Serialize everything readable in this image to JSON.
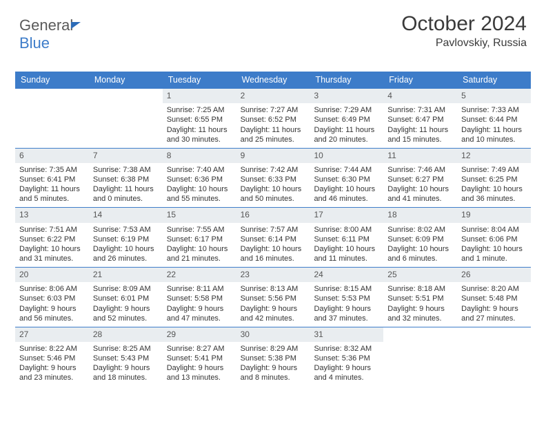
{
  "brand": {
    "part1": "General",
    "part2": "Blue"
  },
  "header": {
    "month_year": "October 2024",
    "location": "Pavlovskiy, Russia"
  },
  "colors": {
    "header_bg": "#3d7cc9",
    "daynum_bg": "#e9edf0",
    "rule": "#3d7cc9",
    "text": "#333333"
  },
  "dow": [
    "Sunday",
    "Monday",
    "Tuesday",
    "Wednesday",
    "Thursday",
    "Friday",
    "Saturday"
  ],
  "weeks": [
    [
      null,
      null,
      {
        "n": "1",
        "sr": "7:25 AM",
        "ss": "6:55 PM",
        "dl": "11 hours and 30 minutes."
      },
      {
        "n": "2",
        "sr": "7:27 AM",
        "ss": "6:52 PM",
        "dl": "11 hours and 25 minutes."
      },
      {
        "n": "3",
        "sr": "7:29 AM",
        "ss": "6:49 PM",
        "dl": "11 hours and 20 minutes."
      },
      {
        "n": "4",
        "sr": "7:31 AM",
        "ss": "6:47 PM",
        "dl": "11 hours and 15 minutes."
      },
      {
        "n": "5",
        "sr": "7:33 AM",
        "ss": "6:44 PM",
        "dl": "11 hours and 10 minutes."
      }
    ],
    [
      {
        "n": "6",
        "sr": "7:35 AM",
        "ss": "6:41 PM",
        "dl": "11 hours and 5 minutes."
      },
      {
        "n": "7",
        "sr": "7:38 AM",
        "ss": "6:38 PM",
        "dl": "11 hours and 0 minutes."
      },
      {
        "n": "8",
        "sr": "7:40 AM",
        "ss": "6:36 PM",
        "dl": "10 hours and 55 minutes."
      },
      {
        "n": "9",
        "sr": "7:42 AM",
        "ss": "6:33 PM",
        "dl": "10 hours and 50 minutes."
      },
      {
        "n": "10",
        "sr": "7:44 AM",
        "ss": "6:30 PM",
        "dl": "10 hours and 46 minutes."
      },
      {
        "n": "11",
        "sr": "7:46 AM",
        "ss": "6:27 PM",
        "dl": "10 hours and 41 minutes."
      },
      {
        "n": "12",
        "sr": "7:49 AM",
        "ss": "6:25 PM",
        "dl": "10 hours and 36 minutes."
      }
    ],
    [
      {
        "n": "13",
        "sr": "7:51 AM",
        "ss": "6:22 PM",
        "dl": "10 hours and 31 minutes."
      },
      {
        "n": "14",
        "sr": "7:53 AM",
        "ss": "6:19 PM",
        "dl": "10 hours and 26 minutes."
      },
      {
        "n": "15",
        "sr": "7:55 AM",
        "ss": "6:17 PM",
        "dl": "10 hours and 21 minutes."
      },
      {
        "n": "16",
        "sr": "7:57 AM",
        "ss": "6:14 PM",
        "dl": "10 hours and 16 minutes."
      },
      {
        "n": "17",
        "sr": "8:00 AM",
        "ss": "6:11 PM",
        "dl": "10 hours and 11 minutes."
      },
      {
        "n": "18",
        "sr": "8:02 AM",
        "ss": "6:09 PM",
        "dl": "10 hours and 6 minutes."
      },
      {
        "n": "19",
        "sr": "8:04 AM",
        "ss": "6:06 PM",
        "dl": "10 hours and 1 minute."
      }
    ],
    [
      {
        "n": "20",
        "sr": "8:06 AM",
        "ss": "6:03 PM",
        "dl": "9 hours and 56 minutes."
      },
      {
        "n": "21",
        "sr": "8:09 AM",
        "ss": "6:01 PM",
        "dl": "9 hours and 52 minutes."
      },
      {
        "n": "22",
        "sr": "8:11 AM",
        "ss": "5:58 PM",
        "dl": "9 hours and 47 minutes."
      },
      {
        "n": "23",
        "sr": "8:13 AM",
        "ss": "5:56 PM",
        "dl": "9 hours and 42 minutes."
      },
      {
        "n": "24",
        "sr": "8:15 AM",
        "ss": "5:53 PM",
        "dl": "9 hours and 37 minutes."
      },
      {
        "n": "25",
        "sr": "8:18 AM",
        "ss": "5:51 PM",
        "dl": "9 hours and 32 minutes."
      },
      {
        "n": "26",
        "sr": "8:20 AM",
        "ss": "5:48 PM",
        "dl": "9 hours and 27 minutes."
      }
    ],
    [
      {
        "n": "27",
        "sr": "8:22 AM",
        "ss": "5:46 PM",
        "dl": "9 hours and 23 minutes."
      },
      {
        "n": "28",
        "sr": "8:25 AM",
        "ss": "5:43 PM",
        "dl": "9 hours and 18 minutes."
      },
      {
        "n": "29",
        "sr": "8:27 AM",
        "ss": "5:41 PM",
        "dl": "9 hours and 13 minutes."
      },
      {
        "n": "30",
        "sr": "8:29 AM",
        "ss": "5:38 PM",
        "dl": "9 hours and 8 minutes."
      },
      {
        "n": "31",
        "sr": "8:32 AM",
        "ss": "5:36 PM",
        "dl": "9 hours and 4 minutes."
      },
      null,
      null
    ]
  ],
  "labels": {
    "sunrise": "Sunrise: ",
    "sunset": "Sunset: ",
    "daylight": "Daylight: "
  }
}
